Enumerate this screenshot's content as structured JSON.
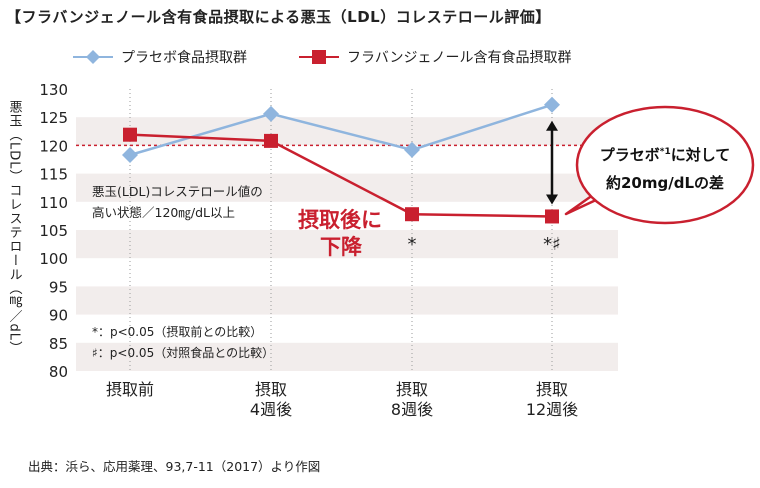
{
  "title": "【フラバンジェノール含有食品摂取による悪玉（LDL）コレステロール評価】",
  "source": "出典：浜ら、応用薬理、93,7-11（2017）より作図",
  "chart_data": {
    "type": "line",
    "categories": [
      "摂取前",
      "摂取\n4週後",
      "摂取\n8週後",
      "摂取\n12週後"
    ],
    "series": [
      {
        "name": "プラセボ食品摂取群",
        "values": [
          118.3,
          125.6,
          119.2,
          127.2
        ],
        "color": "#8fb5de",
        "marker": "diamond"
      },
      {
        "name": "フラバンジェノール含有食品摂取群",
        "values": [
          121.9,
          120.8,
          107.8,
          107.4
        ],
        "color": "#c9202f",
        "marker": "square"
      }
    ],
    "ylabel": "悪玉（LDL）コレステロール（㎎／dL）",
    "ylim": [
      80,
      130
    ],
    "yticks": [
      80,
      85,
      90,
      95,
      100,
      105,
      110,
      115,
      120,
      125,
      130
    ],
    "reference_line": 120,
    "threshold_note": [
      "悪玉(LDL)コレステロール値の",
      "高い状態／120㎎/dL以上"
    ],
    "decrease_label": [
      "摂取後に",
      "下降"
    ],
    "significance_marks": [
      {
        "category_index": 2,
        "text": "*"
      },
      {
        "category_index": 3,
        "text": "*♯"
      }
    ],
    "significance_legend": [
      "*：p<0.05（摂取前との比較）",
      "♯：p<0.05（対照食品との比較）"
    ],
    "callout": {
      "line1_main": "プラセボ",
      "line1_sup": "*1",
      "line1_tail": "に対して",
      "line2": "約20mg/dLの差"
    },
    "grid": "horizontal-bands",
    "legend_position": "top"
  }
}
